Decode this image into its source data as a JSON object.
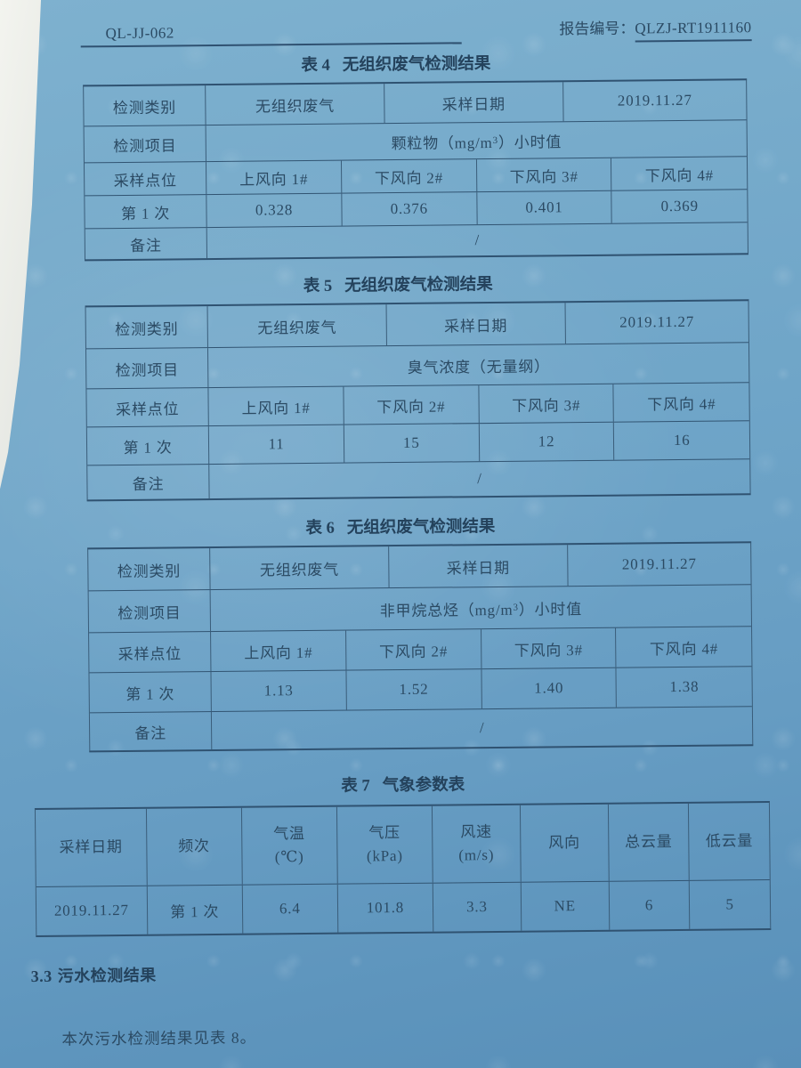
{
  "colors": {
    "paper_blue_top": "#7eb1cf",
    "paper_blue_bottom": "#5990b9",
    "page_edge_white": "#f3f4ef",
    "ink": "#2b4a63",
    "rule": "#2f5271"
  },
  "header": {
    "doc_code": "QL-JJ-062",
    "report_label": "报告编号：",
    "report_no": "QLZJ-RT1911160"
  },
  "table4": {
    "no": "表 4",
    "title": "无组织废气检测结果",
    "category_label": "检测类别",
    "category": "无组织废气",
    "date_label": "采样日期",
    "date": "2019.11.27",
    "item_label": "检测项目",
    "item_pre": "颗粒物（mg/m",
    "item_sup": "3",
    "item_post": "）小时值",
    "points_label": "采样点位",
    "points": [
      "上风向 1#",
      "下风向 2#",
      "下风向 3#",
      "下风向 4#"
    ],
    "freq_label": "第 1 次",
    "values": [
      "0.328",
      "0.376",
      "0.401",
      "0.369"
    ],
    "remark_label": "备注",
    "remark": "/"
  },
  "table5": {
    "no": "表 5",
    "title": "无组织废气检测结果",
    "category_label": "检测类别",
    "category": "无组织废气",
    "date_label": "采样日期",
    "date": "2019.11.27",
    "item_label": "检测项目",
    "item_pre": "臭气浓度（无量纲）",
    "item_sup": "",
    "item_post": "",
    "points_label": "采样点位",
    "points": [
      "上风向 1#",
      "下风向 2#",
      "下风向 3#",
      "下风向 4#"
    ],
    "freq_label": "第 1 次",
    "values": [
      "11",
      "15",
      "12",
      "16"
    ],
    "remark_label": "备注",
    "remark": "/"
  },
  "table6": {
    "no": "表 6",
    "title": "无组织废气检测结果",
    "category_label": "检测类别",
    "category": "无组织废气",
    "date_label": "采样日期",
    "date": "2019.11.27",
    "item_label": "检测项目",
    "item_pre": "非甲烷总烃（mg/m",
    "item_sup": "3",
    "item_post": "）小时值",
    "points_label": "采样点位",
    "points": [
      "上风向 1#",
      "下风向 2#",
      "下风向 3#",
      "下风向 4#"
    ],
    "freq_label": "第 1 次",
    "values": [
      "1.13",
      "1.52",
      "1.40",
      "1.38"
    ],
    "remark_label": "备注",
    "remark": "/"
  },
  "table7": {
    "no": "表 7",
    "title": "气象参数表",
    "headers": [
      [
        "采样日期",
        ""
      ],
      [
        "频次",
        ""
      ],
      [
        "气温",
        "(℃)"
      ],
      [
        "气压",
        "(kPa)"
      ],
      [
        "风速",
        "(m/s)"
      ],
      [
        "风向",
        ""
      ],
      [
        "总云量",
        ""
      ],
      [
        "低云量",
        ""
      ]
    ],
    "row": [
      "2019.11.27",
      "第 1 次",
      "6.4",
      "101.8",
      "3.3",
      "NE",
      "6",
      "5"
    ]
  },
  "section": {
    "no": "3.3",
    "title": "污水检测结果",
    "body": "本次污水检测结果见表 8。"
  }
}
